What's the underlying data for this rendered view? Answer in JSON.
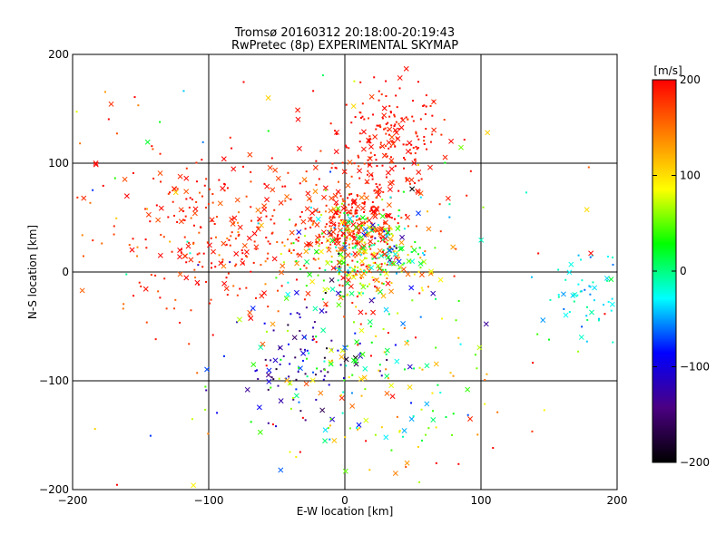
{
  "chart_data": {
    "type": "scatter",
    "title": "Tromsø 20160312 20:18:00-20:19:43",
    "subtitle": "RwPretec (8p) EXPERIMENTAL SKYMAP",
    "xlabel": "E-W location [km]",
    "ylabel": "N-S location [km]",
    "xlim": [
      -200,
      200
    ],
    "ylim": [
      -200,
      200
    ],
    "x_ticks": [
      -200,
      -100,
      0,
      100,
      200
    ],
    "y_ticks": [
      -200,
      -100,
      0,
      100,
      200
    ],
    "x_tick_labels": [
      "−200",
      "−100",
      "0",
      "100",
      "200"
    ],
    "y_tick_labels": [
      "−200",
      "−100",
      "0",
      "100",
      "200"
    ],
    "grid": true,
    "marker_types": [
      "cross",
      "dot"
    ],
    "colorbar": {
      "label": "[m/s]",
      "range": [
        -200,
        200
      ],
      "ticks": [
        200,
        100,
        0,
        -100,
        -200
      ],
      "tick_labels": [
        "200",
        "100",
        "0",
        "−100",
        "−200"
      ],
      "colormap": [
        "#000000",
        "#4b0082",
        "#0000ff",
        "#00ffff",
        "#00ff00",
        "#ffff00",
        "#ff8000",
        "#ff0000"
      ]
    },
    "clusters": [
      {
        "label": "north-red",
        "center": [
          35,
          120
        ],
        "spread": [
          20,
          25
        ],
        "velocity": 190,
        "velocity_spread": 10,
        "count": 200
      },
      {
        "label": "center-red",
        "center": [
          5,
          45
        ],
        "spread": [
          20,
          20
        ],
        "velocity": 185,
        "velocity_spread": 20,
        "count": 260
      },
      {
        "label": "center-mixed",
        "center": [
          15,
          15
        ],
        "spread": [
          25,
          25
        ],
        "velocity": 60,
        "velocity_spread": 90,
        "count": 340
      },
      {
        "label": "west-red",
        "center": [
          -90,
          40
        ],
        "spread": [
          55,
          40
        ],
        "velocity": 185,
        "velocity_spread": 20,
        "count": 320
      },
      {
        "label": "south-blue",
        "center": [
          -35,
          -80
        ],
        "spread": [
          25,
          25
        ],
        "velocity": -130,
        "velocity_spread": 30,
        "count": 90
      },
      {
        "label": "south-mixed",
        "center": [
          20,
          -110
        ],
        "spread": [
          45,
          40
        ],
        "velocity": 60,
        "velocity_spread": 70,
        "count": 150
      },
      {
        "label": "east-cyan",
        "center": [
          175,
          -20
        ],
        "spread": [
          20,
          20
        ],
        "velocity": -30,
        "velocity_spread": 20,
        "count": 60
      },
      {
        "label": "scatter-background",
        "center": [
          0,
          0
        ],
        "spread": [
          120,
          120
        ],
        "velocity": 100,
        "velocity_spread": 120,
        "count": 150
      }
    ]
  }
}
